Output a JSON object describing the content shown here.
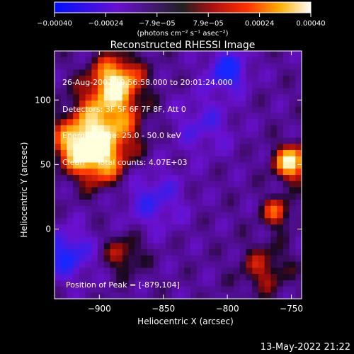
{
  "chart_data": {
    "type": "heatmap",
    "title": "Reconstructed RHESSI Image",
    "xlabel": "Heliocentric X (arcsec)",
    "ylabel": "Heliocentric Y (arcsec)",
    "xlim": [
      -935,
      -742
    ],
    "ylim": [
      -54,
      138
    ],
    "xticks": [
      -900,
      -850,
      -800,
      -750
    ],
    "xtick_labels": [
      "−900",
      "−850",
      "−800",
      "−750"
    ],
    "yticks": [
      0,
      50,
      100
    ],
    "ytick_labels": [
      "0",
      "50",
      "100"
    ],
    "colorbar": {
      "min": -0.0004,
      "max": 0.0004,
      "ticks": [
        "−0.00040",
        "−0.00024",
        "−7.9e−05",
        "7.9e−05",
        "0.00024",
        "0.00040"
      ],
      "units": "(photons cm⁻² s⁻¹ asec⁻²)"
    },
    "annotations": [
      "26-Aug-2002 19:56:58.000 to 20:01:24.000",
      "Detectors: 3F 5F 6F 7F 8F, Att 0",
      "Energy Range: 25.0 - 50.0 keV",
      "Clean     Total counts: 4.07E+03"
    ],
    "peak_text": "Position of Peak = [-879,104]",
    "grid": false
  },
  "footer": {
    "timestamp": "13-May-2022 21:22"
  },
  "colors": {
    "background": "#000000",
    "text": "#ffffff"
  }
}
